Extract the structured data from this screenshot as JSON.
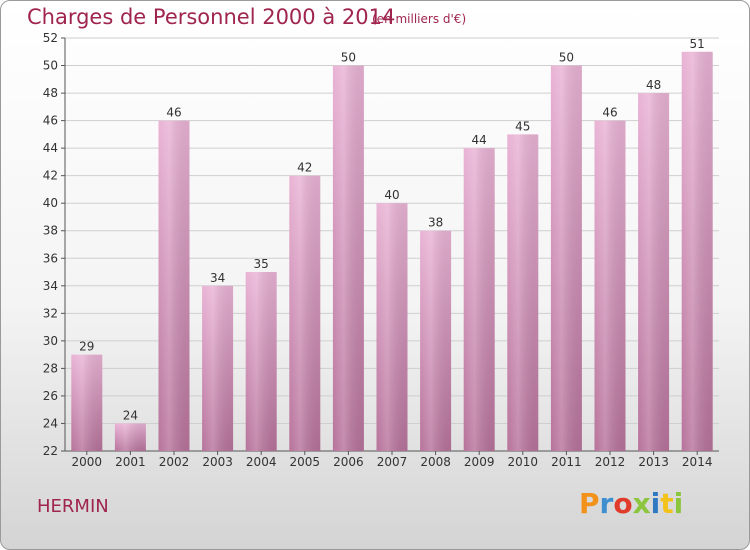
{
  "header": {
    "title": "Charges de Personnel 2000 à 2014",
    "units": "(en milliers d'€)"
  },
  "footer": {
    "commune": "HERMIN",
    "logo_text": "Proxiti"
  },
  "colors": {
    "title": "#a0254e",
    "bar_light": "#e9b3d5",
    "bar_dark": "#b7739b",
    "grid": "#cfcfcf"
  },
  "chart_data": {
    "type": "bar",
    "title": "Charges de Personnel 2000 à 2014",
    "subtitle": "(en milliers d'€)",
    "xlabel": "",
    "ylabel": "",
    "categories": [
      "2000",
      "2001",
      "2002",
      "2003",
      "2004",
      "2005",
      "2006",
      "2007",
      "2008",
      "2009",
      "2010",
      "2011",
      "2012",
      "2013",
      "2014"
    ],
    "values": [
      29,
      24,
      46,
      34,
      35,
      42,
      50,
      40,
      38,
      44,
      45,
      50,
      46,
      48,
      51
    ],
    "ylim": [
      22,
      52
    ],
    "yticks": [
      22,
      24,
      26,
      28,
      30,
      32,
      34,
      36,
      38,
      40,
      42,
      44,
      46,
      48,
      50,
      52
    ],
    "grid": true,
    "legend": "none"
  }
}
